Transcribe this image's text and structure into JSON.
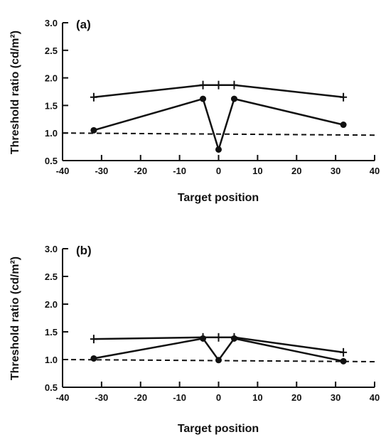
{
  "chart_data": [
    {
      "type": "line",
      "panel_label": "(a)",
      "xlabel": "Target position",
      "ylabel": "Threshold ratio (cd/m²)",
      "xlim": [
        -40,
        40
      ],
      "ylim": [
        0.5,
        3.0
      ],
      "xticks": [
        -40,
        -30,
        -20,
        -10,
        0,
        10,
        20,
        30,
        40
      ],
      "yticks": [
        "0.5",
        "1.0",
        "1.5",
        "2.0",
        "2.5",
        "3.0"
      ],
      "reference_line": {
        "y": 1.0,
        "style": "dashed"
      },
      "grid": false,
      "series": [
        {
          "marker": "plus",
          "x": [
            -32,
            -4,
            0,
            4,
            32
          ],
          "y": [
            1.65,
            1.87,
            1.87,
            1.87,
            1.65
          ]
        },
        {
          "marker": "dot",
          "x": [
            -32,
            -4,
            0,
            4,
            32
          ],
          "y": [
            1.05,
            1.62,
            0.7,
            1.62,
            1.15
          ]
        }
      ]
    },
    {
      "type": "line",
      "panel_label": "(b)",
      "xlabel": "Target position",
      "ylabel": "Threshold ratio (cd/m²)",
      "xlim": [
        -40,
        40
      ],
      "ylim": [
        0.5,
        3.0
      ],
      "xticks": [
        -40,
        -30,
        -20,
        -10,
        0,
        10,
        20,
        30,
        40
      ],
      "yticks": [
        "0.5",
        "1.0",
        "1.5",
        "2.0",
        "2.5",
        "3.0"
      ],
      "reference_line": {
        "y": 1.0,
        "style": "dashed"
      },
      "grid": false,
      "series": [
        {
          "marker": "plus",
          "x": [
            -32,
            -4,
            0,
            4,
            32
          ],
          "y": [
            1.37,
            1.4,
            1.4,
            1.4,
            1.13
          ]
        },
        {
          "marker": "dot",
          "x": [
            -32,
            -4,
            0,
            4,
            32
          ],
          "y": [
            1.02,
            1.38,
            0.99,
            1.38,
            0.97
          ]
        }
      ]
    }
  ]
}
